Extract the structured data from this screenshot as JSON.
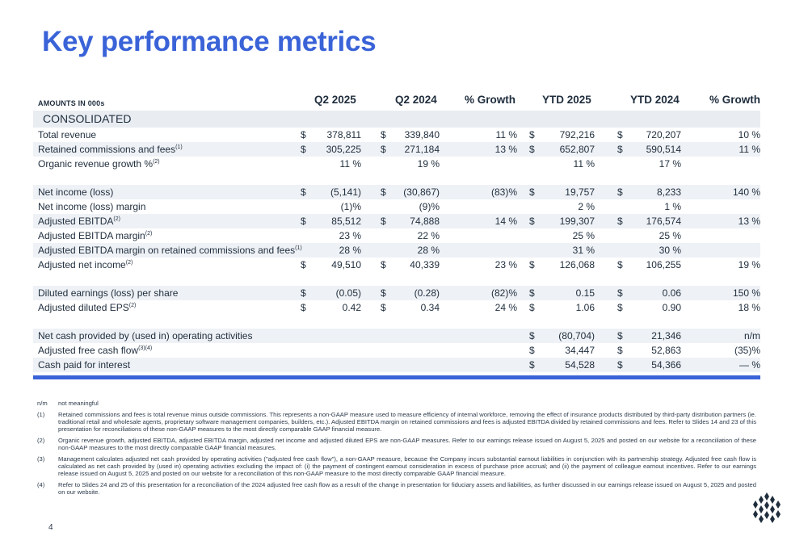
{
  "title": "Key performance metrics",
  "header": {
    "amounts": "AMOUNTS IN 000s",
    "cols": [
      "Q2 2025",
      "Q2 2024",
      "% Growth",
      "YTD 2025",
      "YTD 2024",
      "% Growth"
    ]
  },
  "section": "CONSOLIDATED",
  "rows": [
    {
      "label": "Total revenue",
      "sup": "",
      "alt": false,
      "cells": [
        "$",
        "378,811",
        "$",
        "339,840",
        "11 %",
        "$",
        "792,216",
        "$",
        "720,207",
        "10 %"
      ]
    },
    {
      "label": "Retained commissions and fees",
      "sup": "(1)",
      "alt": true,
      "cells": [
        "$",
        "305,225",
        "$",
        "271,184",
        "13 %",
        "$",
        "652,807",
        "$",
        "590,514",
        "11 %"
      ]
    },
    {
      "label": "Organic revenue growth %",
      "sup": "(2)",
      "alt": false,
      "cells": [
        "",
        "11 %",
        "",
        "19 %",
        "",
        "",
        "11 %",
        "",
        "17 %",
        ""
      ]
    },
    {
      "gap": true
    },
    {
      "label": "Net income (loss)",
      "sup": "",
      "alt": true,
      "cells": [
        "$",
        "(5,141)",
        "$",
        "(30,867)",
        "(83)%",
        "$",
        "19,757",
        "$",
        "8,233",
        "140 %"
      ]
    },
    {
      "label": "Net income (loss) margin",
      "sup": "",
      "alt": false,
      "cells": [
        "",
        "(1)%",
        "",
        "(9)%",
        "",
        "",
        "2 %",
        "",
        "1 %",
        ""
      ]
    },
    {
      "label": "Adjusted EBITDA",
      "sup": "(2)",
      "alt": true,
      "cells": [
        "$",
        "85,512",
        "$",
        "74,888",
        "14 %",
        "$",
        "199,307",
        "$",
        "176,574",
        "13 %"
      ]
    },
    {
      "label": "Adjusted EBITDA margin",
      "sup": "(2)",
      "alt": false,
      "cells": [
        "",
        "23 %",
        "",
        "22 %",
        "",
        "",
        "25 %",
        "",
        "25 %",
        ""
      ]
    },
    {
      "label": "Adjusted EBITDA margin on retained commissions and fees",
      "sup": "(1)",
      "alt": true,
      "cells": [
        "",
        "28 %",
        "",
        "28 %",
        "",
        "",
        "31 %",
        "",
        "30 %",
        ""
      ]
    },
    {
      "label": "Adjusted net income",
      "sup": "(2)",
      "alt": false,
      "cells": [
        "$",
        "49,510",
        "$",
        "40,339",
        "23 %",
        "$",
        "126,068",
        "$",
        "106,255",
        "19 %"
      ]
    },
    {
      "gap": true
    },
    {
      "label": "Diluted earnings (loss) per share",
      "sup": "",
      "alt": true,
      "cells": [
        "$",
        "(0.05)",
        "$",
        "(0.28)",
        "(82)%",
        "$",
        "0.15",
        "$",
        "0.06",
        "150 %"
      ]
    },
    {
      "label": "Adjusted diluted EPS",
      "sup": "(2)",
      "alt": false,
      "cells": [
        "$",
        "0.42",
        "$",
        "0.34",
        "24 %",
        "$",
        "1.06",
        "$",
        "0.90",
        "18 %"
      ]
    },
    {
      "gap": true
    },
    {
      "label": "Net cash provided by (used in) operating activities",
      "sup": "",
      "alt": true,
      "cells": [
        "",
        "",
        "",
        "",
        "",
        "$",
        "(80,704)",
        "$",
        "21,346",
        "n/m"
      ]
    },
    {
      "label": "Adjusted free cash flow",
      "sup": "(3)(4)",
      "alt": false,
      "cells": [
        "",
        "",
        "",
        "",
        "",
        "$",
        "34,447",
        "$",
        "52,863",
        "(35)%"
      ]
    },
    {
      "label": "Cash paid for interest",
      "sup": "",
      "alt": true,
      "cells": [
        "",
        "",
        "",
        "",
        "",
        "$",
        "54,528",
        "$",
        "54,366",
        "— %"
      ]
    }
  ],
  "notes": {
    "nm_key": "n/m",
    "nm_text": "not meaningful",
    "items": [
      {
        "key": "(1)",
        "text": "Retained commissions and fees is total revenue minus outside commissions. This represents a non-GAAP measure used to measure efficiency of internal workforce, removing the effect of insurance products distributed by third-party distribution partners (ie. traditional retail and wholesale agents, proprietary software management companies, builders, etc.). Adjusted EBITDA margin on retained commissions and fees is adjusted EBITDA divided by retained commissions and fees. Refer to Slides 14 and 23 of this presentation for reconciliations of these non-GAAP measures to the most directly comparable GAAP financial measure."
      },
      {
        "key": "(2)",
        "text": "Organic revenue growth, adjusted EBITDA, adjusted EBITDA margin, adjusted net income and adjusted diluted EPS are non-GAAP measures. Refer to our earnings release issued on August 5, 2025 and posted on our website for a reconciliation of these non-GAAP measures to the most directly comparable GAAP financial measures."
      },
      {
        "key": "(3)",
        "text": "Management calculates adjusted net cash provided by operating activities (\"adjusted free cash flow\"), a non-GAAP measure, because the Company incurs substantial earnout liabilities in conjunction with its partnership strategy. Adjusted free cash flow is calculated as net cash provided by (used in) operating activities excluding the impact of: (i) the payment of contingent earnout consideration in excess of purchase price accrual; and (ii) the payment of colleague earnout incentives. Refer to our earnings release issued on August 5, 2025 and posted on our website for a reconciliation of this non-GAAP measure to the most directly comparable GAAP financial measure."
      },
      {
        "key": "(4)",
        "text": "Refer to Slides 24 and 25 of this presentation for a reconciliation of the 2024 adjusted free cash flow as a result of the change in presentation for fiduciary assets and liabilities, as further discussed in our earnings release issued on August 5, 2025 and posted on our website."
      }
    ]
  },
  "page_number": "4",
  "logo_icon": "company-logo-icon",
  "colors": {
    "accent": "#3a63d8",
    "row_shade": "#eef1f5"
  }
}
